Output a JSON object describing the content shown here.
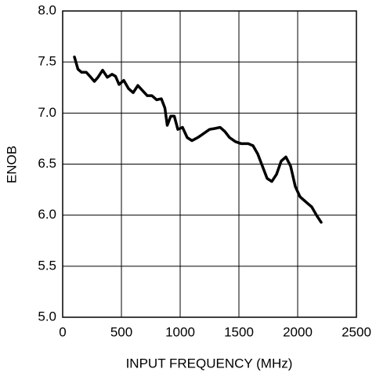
{
  "chart_data": {
    "type": "line",
    "x_label": "INPUT FREQUENCY (MHz)",
    "y_label": "ENOB",
    "x": [
      100,
      130,
      160,
      200,
      240,
      270,
      300,
      340,
      380,
      420,
      450,
      480,
      520,
      560,
      600,
      640,
      680,
      720,
      760,
      800,
      840,
      870,
      890,
      920,
      950,
      980,
      1020,
      1060,
      1100,
      1150,
      1200,
      1250,
      1300,
      1340,
      1380,
      1420,
      1470,
      1520,
      1580,
      1620,
      1660,
      1700,
      1740,
      1780,
      1820,
      1860,
      1900,
      1940,
      1980,
      2020,
      2080,
      2120,
      2160,
      2200
    ],
    "series": [
      {
        "name": "ENOB",
        "color": "#000000",
        "values": [
          7.55,
          7.43,
          7.4,
          7.4,
          7.35,
          7.31,
          7.35,
          7.42,
          7.35,
          7.38,
          7.36,
          7.28,
          7.32,
          7.24,
          7.2,
          7.27,
          7.22,
          7.17,
          7.17,
          7.13,
          7.14,
          7.05,
          6.88,
          6.97,
          6.97,
          6.84,
          6.86,
          6.76,
          6.73,
          6.76,
          6.8,
          6.84,
          6.85,
          6.86,
          6.82,
          6.76,
          6.72,
          6.7,
          6.7,
          6.68,
          6.6,
          6.48,
          6.36,
          6.33,
          6.4,
          6.53,
          6.57,
          6.48,
          6.28,
          6.18,
          6.12,
          6.08,
          6.0,
          5.93
        ]
      }
    ],
    "xlim": [
      0,
      2500
    ],
    "xticks": [
      0,
      500,
      1000,
      1500,
      2000,
      2500
    ],
    "ylim": [
      5,
      8
    ],
    "yticks": [
      {
        "value": 5,
        "label": "5.0"
      },
      {
        "value": 5.5,
        "label": "5.5"
      },
      {
        "value": 6,
        "label": "6.0"
      },
      {
        "value": 6.5,
        "label": "6.5"
      },
      {
        "value": 7,
        "label": "7.0"
      },
      {
        "value": 7.5,
        "label": "7.5"
      },
      {
        "value": 8,
        "label": "8.0"
      }
    ],
    "grid": true
  }
}
